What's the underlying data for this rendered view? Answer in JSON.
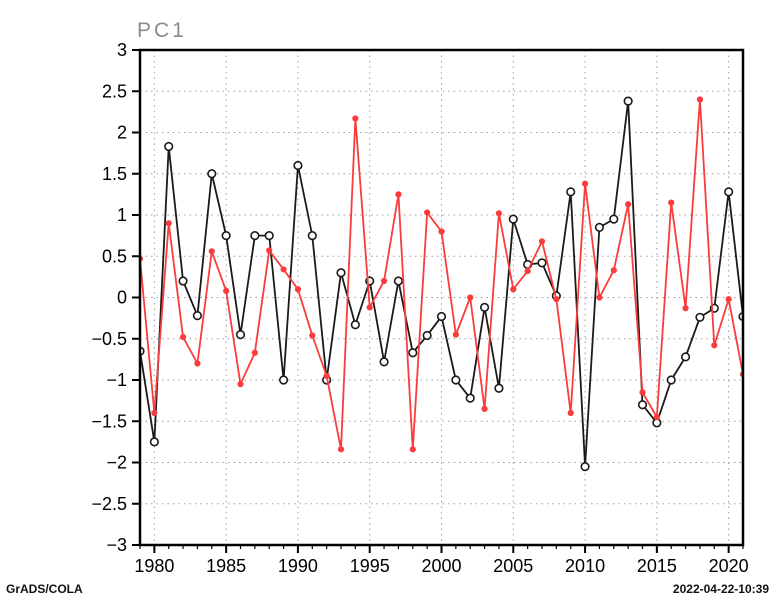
{
  "title": "PC1",
  "footer": {
    "left": "GrADS/COLA",
    "right": "2022-04-22-10:39"
  },
  "colors": {
    "black_series": "#1a1a1a",
    "red_series": "#fa3c3c",
    "grid": "#9e9e9e",
    "frame": "#000000",
    "title": "#8c8c8c"
  },
  "chart_data": {
    "type": "line",
    "title": "PC1",
    "xlabel": "",
    "ylabel": "",
    "grid": true,
    "legend": "none",
    "xrange": [
      1979,
      2021
    ],
    "ylim": [
      -3,
      3
    ],
    "xticks": [
      1980,
      1985,
      1990,
      1995,
      2000,
      2005,
      2010,
      2015,
      2020
    ],
    "yticks": [
      3,
      2.5,
      2,
      1.5,
      1,
      0.5,
      0,
      -0.5,
      -1,
      -1.5,
      -2,
      -2.5,
      -3
    ],
    "x": [
      1979,
      1980,
      1981,
      1982,
      1983,
      1984,
      1985,
      1986,
      1987,
      1988,
      1989,
      1990,
      1991,
      1992,
      1993,
      1994,
      1995,
      1996,
      1997,
      1998,
      1999,
      2000,
      2001,
      2002,
      2003,
      2004,
      2005,
      2006,
      2007,
      2008,
      2009,
      2010,
      2011,
      2012,
      2013,
      2014,
      2015,
      2016,
      2017,
      2018,
      2019,
      2020,
      2021
    ],
    "series": [
      {
        "name": "black-open-circle",
        "marker": "open-circle",
        "color": "#1a1a1a",
        "values": [
          -0.65,
          -1.75,
          1.83,
          0.2,
          -0.22,
          1.5,
          0.75,
          -0.45,
          0.75,
          0.75,
          -1.0,
          1.6,
          0.75,
          -1.0,
          0.3,
          -0.33,
          0.2,
          -0.78,
          0.2,
          -0.67,
          -0.46,
          -0.23,
          -1.0,
          -1.22,
          -0.12,
          -1.1,
          0.95,
          0.4,
          0.42,
          0.02,
          1.28,
          -2.05,
          0.85,
          0.95,
          2.38,
          -1.3,
          -1.52,
          -1.0,
          -0.72,
          -0.24,
          -0.13,
          1.28,
          -0.23
        ]
      },
      {
        "name": "red-filled-dot",
        "marker": "filled-circle",
        "color": "#fa3c3c",
        "values": [
          0.47,
          -1.4,
          0.9,
          -0.48,
          -0.8,
          0.56,
          0.08,
          -1.05,
          -0.67,
          0.57,
          0.34,
          0.1,
          -0.46,
          -0.95,
          -1.84,
          2.17,
          -0.12,
          0.2,
          1.25,
          -1.84,
          1.03,
          0.8,
          -0.45,
          0.0,
          -1.35,
          1.02,
          0.1,
          0.32,
          0.68,
          -0.02,
          -1.4,
          1.38,
          0.0,
          0.33,
          1.13,
          -1.15,
          -1.45,
          1.15,
          -0.13,
          2.4,
          -0.58,
          -0.02,
          -0.93
        ]
      }
    ]
  }
}
